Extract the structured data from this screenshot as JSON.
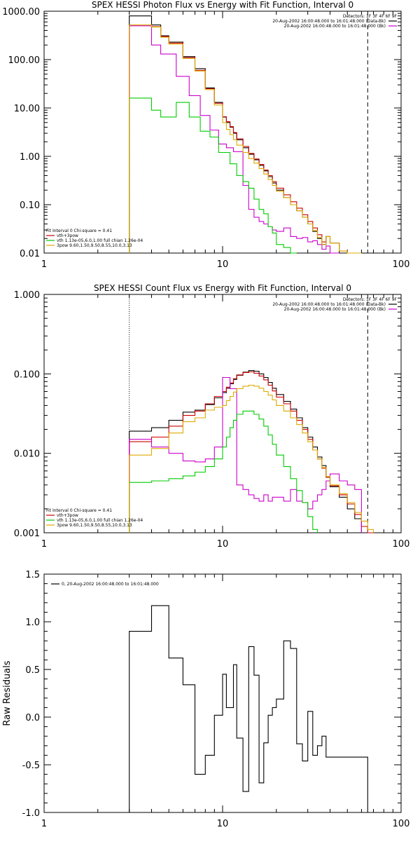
{
  "chart_data": [
    {
      "type": "line",
      "step": true,
      "title": "SPEX HESSI Photon Flux vs Energy with Fit Function, Interval 0",
      "xlabel": "",
      "ylabel": "",
      "xscale": "log",
      "yscale": "log",
      "xlim": [
        1,
        100
      ],
      "ylim": [
        0.01,
        1000
      ],
      "xticks": [
        1,
        10,
        100
      ],
      "xtick_labels": [
        "1",
        "10",
        "100"
      ],
      "yticks": [
        0.01,
        0.1,
        1,
        10,
        100,
        1000
      ],
      "ytick_labels": [
        "0.01",
        "0.10",
        "1.00",
        "10.00",
        "100.00",
        "1000.00"
      ],
      "vlines": [
        {
          "x": 3,
          "style": "dotted"
        },
        {
          "x": 65,
          "style": "dashed"
        }
      ],
      "legend_top": [
        {
          "text": "Detectors: 1F 3F 4F 6F 9F",
          "color": ""
        },
        {
          "text": "20-Aug-2002 16:00:48.000 to 16:01:48.000 (Data-Bk)",
          "color": "#000000"
        },
        {
          "text": "20-Aug-2002 16:00:48.000 to 16:01:48.000 (Bk)",
          "color": "#cc00cc"
        }
      ],
      "legend_bottom": [
        {
          "text": "Fit Interval 0   Chi-square = 0.41",
          "color": ""
        },
        {
          "text": "vth+3pow",
          "color": "#cc0000"
        },
        {
          "text": "vth 1.13e-05,6.0,1.00  full chian 1.26e-04",
          "color": "#00cc00"
        },
        {
          "text": "3pow 9.60,1.50,9.50,8.55,10.0,3.13",
          "color": "#ddaa00"
        }
      ],
      "edges": [
        3,
        3.5,
        4,
        4.5,
        5,
        5.5,
        6,
        6.5,
        7,
        7.5,
        8,
        8.5,
        9,
        9.5,
        10,
        10.5,
        11,
        11.5,
        12,
        13,
        14,
        15,
        16,
        17,
        18,
        19,
        20,
        22,
        24,
        26,
        28,
        30,
        32,
        34,
        36,
        38,
        40,
        45,
        50,
        55,
        60,
        65,
        70
      ],
      "series": [
        {
          "name": "Data-Bk",
          "color": "#000000",
          "values": [
            800,
            800,
            520,
            310,
            230,
            230,
            115,
            115,
            65,
            65,
            26,
            26,
            13,
            13,
            6.5,
            5,
            4,
            3,
            2.2,
            1.5,
            1.1,
            0.85,
            0.65,
            0.5,
            0.38,
            0.28,
            0.2,
            0.14,
            0.1,
            0.075,
            0.055,
            0.04,
            0.028,
            0.02,
            0.015,
            0.022,
            0.016,
            0.01,
            0.007,
            null
          ]
        },
        {
          "name": "vth+3pow",
          "color": "#cc0000",
          "values": [
            520,
            520,
            480,
            300,
            220,
            220,
            110,
            110,
            60,
            60,
            25,
            25,
            12.5,
            12.5,
            6.6,
            5.2,
            4.1,
            3.1,
            2.3,
            1.6,
            1.15,
            0.88,
            0.68,
            0.52,
            0.4,
            0.3,
            0.22,
            0.16,
            0.115,
            0.085,
            0.062,
            0.045,
            0.033,
            0.024,
            0.017,
            0.022,
            0.016,
            0.011,
            0.008,
            null
          ]
        },
        {
          "name": "Bk",
          "color": "#cc00cc",
          "values": [
            500,
            500,
            200,
            130,
            130,
            45,
            45,
            18,
            18,
            7,
            7,
            3.5,
            3.5,
            1.8,
            1.8,
            1.5,
            1.5,
            1.25,
            1.25,
            0.25,
            0.08,
            0.055,
            0.045,
            0.04,
            0.035,
            0.03,
            0.028,
            0.033,
            0.022,
            0.02,
            0.021,
            0.017,
            0.018,
            0.015,
            0.012,
            0.014,
            0.01,
            null,
            null,
            null
          ]
        },
        {
          "name": "vth",
          "color": "#00cc00",
          "values": [
            16,
            16,
            9,
            6.5,
            6.5,
            13,
            13,
            6.5,
            6.5,
            3.3,
            3.3,
            2.5,
            2.5,
            1.2,
            1.2,
            1.2,
            0.7,
            0.7,
            0.4,
            0.3,
            0.22,
            0.13,
            0.08,
            0.065,
            0.035,
            0.026,
            0.015,
            0.013,
            0.01,
            null,
            null,
            null,
            null,
            null,
            null,
            null,
            null,
            null,
            null,
            null
          ]
        },
        {
          "name": "3pow",
          "color": "#ddaa00",
          "values": [
            520,
            520,
            470,
            290,
            210,
            210,
            105,
            105,
            58,
            58,
            24,
            24,
            11.5,
            11.5,
            5,
            3.6,
            2.8,
            2.2,
            1.7,
            1.2,
            0.9,
            0.72,
            0.56,
            0.43,
            0.33,
            0.25,
            0.19,
            0.14,
            0.1,
            0.075,
            0.055,
            0.04,
            0.029,
            0.021,
            0.015,
            0.022,
            0.016,
            0.011,
            0.008,
            0.006
          ]
        }
      ]
    },
    {
      "type": "line",
      "step": true,
      "title": "SPEX HESSI Count Flux vs Energy with Fit Function, Interval 0",
      "xlabel": "",
      "ylabel": "",
      "xscale": "log",
      "yscale": "log",
      "xlim": [
        1,
        100
      ],
      "ylim": [
        0.001,
        1
      ],
      "xticks": [
        1,
        10,
        100
      ],
      "xtick_labels": [
        "1",
        "10",
        "100"
      ],
      "yticks": [
        0.001,
        0.01,
        0.1,
        1
      ],
      "ytick_labels": [
        "0.001",
        "0.010",
        "0.100",
        "1.000"
      ],
      "vlines": [
        {
          "x": 3,
          "style": "dotted"
        },
        {
          "x": 65,
          "style": "dashed"
        }
      ],
      "legend_top": [
        {
          "text": "Detectors: 1F 3F 4F 6F 9F",
          "color": ""
        },
        {
          "text": "20-Aug-2002 16:00:48.000 to 16:01:48.000 (Data-Bk)",
          "color": "#000000"
        },
        {
          "text": "20-Aug-2002 16:00:48.000 to 16:01:48.000 (Bk)",
          "color": "#cc00cc"
        }
      ],
      "legend_bottom": [
        {
          "text": "Fit Interval 0   Chi-square = 0.41",
          "color": ""
        },
        {
          "text": "vth+3pow",
          "color": "#cc0000"
        },
        {
          "text": "vth 1.13e-05,6.0,1.00  full chian 1.26e-04",
          "color": "#00cc00"
        },
        {
          "text": "3pow 9.60,1.50,9.50,8.55,10.0,3.13",
          "color": "#ddaa00"
        }
      ],
      "edges": [
        3,
        3.5,
        4,
        4.5,
        5,
        5.5,
        6,
        6.5,
        7,
        7.5,
        8,
        8.5,
        9,
        9.5,
        10,
        10.5,
        11,
        11.5,
        12,
        13,
        14,
        15,
        16,
        17,
        18,
        19,
        20,
        22,
        24,
        26,
        28,
        30,
        32,
        34,
        36,
        38,
        40,
        45,
        50,
        55,
        60,
        65,
        70,
        80,
        90
      ],
      "series": [
        {
          "name": "Data-Bk",
          "color": "#000000",
          "values": [
            0.019,
            0.019,
            0.021,
            0.021,
            0.026,
            0.026,
            0.033,
            0.033,
            0.035,
            0.035,
            0.041,
            0.041,
            0.05,
            0.05,
            0.058,
            0.066,
            0.075,
            0.085,
            0.096,
            0.105,
            0.11,
            0.108,
            0.1,
            0.09,
            0.078,
            0.066,
            0.055,
            0.045,
            0.036,
            0.028,
            0.021,
            0.016,
            0.012,
            0.009,
            0.007,
            0.005,
            0.0038,
            0.0028,
            0.002,
            0.0015,
            0.001,
            null,
            null,
            null
          ]
        },
        {
          "name": "vth+3pow",
          "color": "#cc0000",
          "values": [
            0.014,
            0.014,
            0.016,
            0.016,
            0.022,
            0.022,
            0.03,
            0.03,
            0.034,
            0.034,
            0.042,
            0.042,
            0.052,
            0.052,
            0.06,
            0.068,
            0.077,
            0.087,
            0.097,
            0.104,
            0.106,
            0.102,
            0.094,
            0.084,
            0.072,
            0.061,
            0.051,
            0.042,
            0.034,
            0.026,
            0.02,
            0.015,
            0.011,
            0.0085,
            0.0065,
            0.005,
            0.0039,
            0.003,
            0.0023,
            0.0017,
            0.0012,
            0.001,
            null,
            null
          ]
        },
        {
          "name": "Bk",
          "color": "#cc00cc",
          "values": [
            0.015,
            0.015,
            0.012,
            0.012,
            0.01,
            0.01,
            0.008,
            0.008,
            0.0078,
            0.0078,
            0.0085,
            0.0085,
            0.012,
            0.012,
            0.09,
            0.09,
            0.065,
            0.065,
            0.004,
            0.0035,
            0.003,
            0.0027,
            0.0025,
            0.003,
            0.0025,
            0.0028,
            0.0028,
            0.0025,
            0.0035,
            0.0025,
            0.0024,
            0.002,
            0.0025,
            0.003,
            0.0035,
            0.0045,
            0.0055,
            0.0045,
            0.004,
            0.0035,
            null,
            null,
            null,
            null
          ]
        },
        {
          "name": "vth",
          "color": "#00cc00",
          "values": [
            0.0043,
            0.0043,
            0.0045,
            0.0045,
            0.0048,
            0.0048,
            0.0052,
            0.0052,
            0.0058,
            0.0058,
            0.0068,
            0.0068,
            0.0085,
            0.0085,
            0.012,
            0.016,
            0.021,
            0.026,
            0.031,
            0.034,
            0.034,
            0.031,
            0.027,
            0.022,
            0.017,
            0.013,
            0.0095,
            0.0068,
            0.0048,
            0.0034,
            0.0024,
            0.0016,
            0.0011,
            null,
            null,
            null,
            null,
            null,
            null,
            null,
            null,
            null,
            null,
            null
          ]
        },
        {
          "name": "3pow",
          "color": "#ddaa00",
          "values": [
            0.0095,
            0.0095,
            0.0115,
            0.0115,
            0.018,
            0.018,
            0.025,
            0.025,
            0.028,
            0.028,
            0.035,
            0.035,
            0.038,
            0.038,
            0.04,
            0.046,
            0.052,
            0.059,
            0.065,
            0.07,
            0.072,
            0.07,
            0.066,
            0.06,
            0.054,
            0.047,
            0.04,
            0.034,
            0.028,
            0.023,
            0.018,
            0.014,
            0.011,
            0.0085,
            0.0066,
            0.0051,
            0.004,
            0.0031,
            0.0024,
            0.0018,
            0.0014,
            0.0011,
            null,
            null
          ]
        }
      ]
    },
    {
      "type": "line",
      "step": true,
      "title": "",
      "xlabel": "",
      "ylabel": "Raw Residuals",
      "xscale": "log",
      "yscale": "linear",
      "xlim": [
        1,
        100
      ],
      "ylim": [
        -1,
        1.5
      ],
      "xticks": [
        1,
        10,
        100
      ],
      "xtick_labels": [
        "1",
        "10",
        "100"
      ],
      "yticks": [
        -1,
        -0.5,
        0,
        0.5,
        1,
        1.5
      ],
      "ytick_labels": [
        "-1.0",
        "-0.5",
        "0.0",
        "0.5",
        "1.0",
        "1.5"
      ],
      "legend_top": [
        {
          "text": "0, 20-Aug-2002 16:00:48.000 to 16:01:48.000",
          "color": "#000000"
        }
      ],
      "edges": [
        3,
        3.5,
        4,
        4.5,
        5,
        5.5,
        6,
        6.5,
        7,
        7.5,
        8,
        8.5,
        9,
        9.5,
        10,
        10.5,
        11,
        11.5,
        12,
        13,
        14,
        15,
        16,
        17,
        18,
        19,
        20,
        22,
        24,
        26,
        28,
        30,
        32,
        34,
        36,
        38,
        40,
        45,
        50,
        55,
        60,
        65
      ],
      "series": [
        {
          "name": "",
          "color": "#000000",
          "values": [
            0.9,
            0.9,
            1.17,
            1.17,
            0.62,
            0.62,
            0.34,
            0.34,
            -0.6,
            -0.6,
            -0.4,
            -0.4,
            0.02,
            0.02,
            0.45,
            0.1,
            0.1,
            0.55,
            -0.22,
            -0.78,
            0.74,
            0.44,
            -0.69,
            -0.27,
            0.02,
            0.1,
            0.19,
            0.8,
            0.72,
            -0.28,
            -0.46,
            0.06,
            -0.4,
            -0.3,
            -0.2,
            -0.42,
            -0.42,
            -0.42,
            -0.42,
            -0.42,
            -0.42
          ]
        }
      ]
    }
  ]
}
